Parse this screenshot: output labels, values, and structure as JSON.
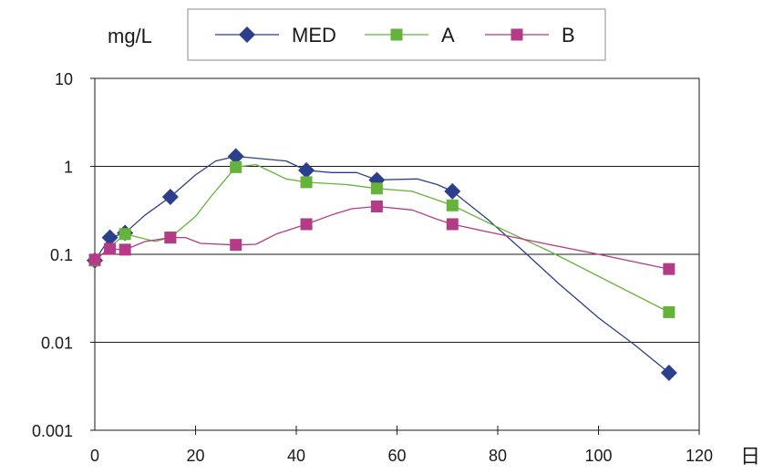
{
  "chart_data": {
    "type": "line",
    "ylabel": "mg/L",
    "xlabel": "日",
    "xlim": [
      0,
      120
    ],
    "ylim": [
      0.001,
      10
    ],
    "yscale": "log",
    "x_ticks": [
      "0",
      "20",
      "40",
      "60",
      "80",
      "100",
      "120"
    ],
    "y_ticks": [
      "10",
      "1",
      "0.1",
      "0.01",
      "0.001"
    ],
    "grid": "horizontal",
    "legend_position": "top",
    "series": [
      {
        "name": "MED",
        "color": "#2b3f8c",
        "marker": "diamond",
        "markers": [
          [
            0,
            0.085
          ],
          [
            3,
            0.155
          ],
          [
            6,
            0.175
          ],
          [
            15,
            0.45
          ],
          [
            28,
            1.3
          ],
          [
            42,
            0.9
          ],
          [
            56,
            0.7
          ],
          [
            71,
            0.52
          ],
          [
            114,
            0.0045
          ]
        ],
        "line": [
          [
            0,
            0.085
          ],
          [
            3,
            0.155
          ],
          [
            6,
            0.175
          ],
          [
            10,
            0.28
          ],
          [
            15,
            0.45
          ],
          [
            20,
            0.8
          ],
          [
            24,
            1.15
          ],
          [
            28,
            1.3
          ],
          [
            38,
            1.15
          ],
          [
            42,
            0.9
          ],
          [
            47,
            0.85
          ],
          [
            52,
            0.85
          ],
          [
            56,
            0.7
          ],
          [
            64,
            0.72
          ],
          [
            68,
            0.62
          ],
          [
            71,
            0.52
          ],
          [
            78,
            0.25
          ],
          [
            85,
            0.11
          ],
          [
            92,
            0.047
          ],
          [
            100,
            0.019
          ],
          [
            107,
            0.0095
          ],
          [
            114,
            0.0045
          ]
        ]
      },
      {
        "name": "A",
        "color": "#66b33b",
        "marker": "square",
        "markers": [
          [
            0,
            0.085
          ],
          [
            6,
            0.17
          ],
          [
            15,
            0.155
          ],
          [
            28,
            0.98
          ],
          [
            42,
            0.66
          ],
          [
            56,
            0.56
          ],
          [
            71,
            0.36
          ],
          [
            114,
            0.022
          ]
        ],
        "line": [
          [
            0,
            0.085
          ],
          [
            6,
            0.17
          ],
          [
            12,
            0.14
          ],
          [
            15,
            0.155
          ],
          [
            20,
            0.27
          ],
          [
            23,
            0.45
          ],
          [
            28,
            0.98
          ],
          [
            32,
            1.05
          ],
          [
            38,
            0.72
          ],
          [
            42,
            0.66
          ],
          [
            50,
            0.62
          ],
          [
            56,
            0.56
          ],
          [
            63,
            0.52
          ],
          [
            71,
            0.36
          ],
          [
            78,
            0.23
          ],
          [
            90,
            0.11
          ],
          [
            114,
            0.022
          ]
        ]
      },
      {
        "name": "B",
        "color": "#b33b87",
        "marker": "square",
        "markers": [
          [
            0,
            0.087
          ],
          [
            3,
            0.115
          ],
          [
            6,
            0.113
          ],
          [
            15,
            0.155
          ],
          [
            28,
            0.128
          ],
          [
            42,
            0.22
          ],
          [
            56,
            0.35
          ],
          [
            71,
            0.22
          ],
          [
            114,
            0.068
          ]
        ],
        "line": [
          [
            0,
            0.087
          ],
          [
            3,
            0.115
          ],
          [
            6,
            0.113
          ],
          [
            10,
            0.14
          ],
          [
            15,
            0.155
          ],
          [
            18,
            0.155
          ],
          [
            21,
            0.133
          ],
          [
            28,
            0.128
          ],
          [
            32,
            0.13
          ],
          [
            36,
            0.17
          ],
          [
            42,
            0.22
          ],
          [
            47,
            0.28
          ],
          [
            51,
            0.33
          ],
          [
            56,
            0.35
          ],
          [
            63,
            0.32
          ],
          [
            68,
            0.25
          ],
          [
            71,
            0.22
          ],
          [
            78,
            0.18
          ],
          [
            90,
            0.13
          ],
          [
            100,
            0.1
          ],
          [
            114,
            0.068
          ]
        ]
      }
    ]
  }
}
